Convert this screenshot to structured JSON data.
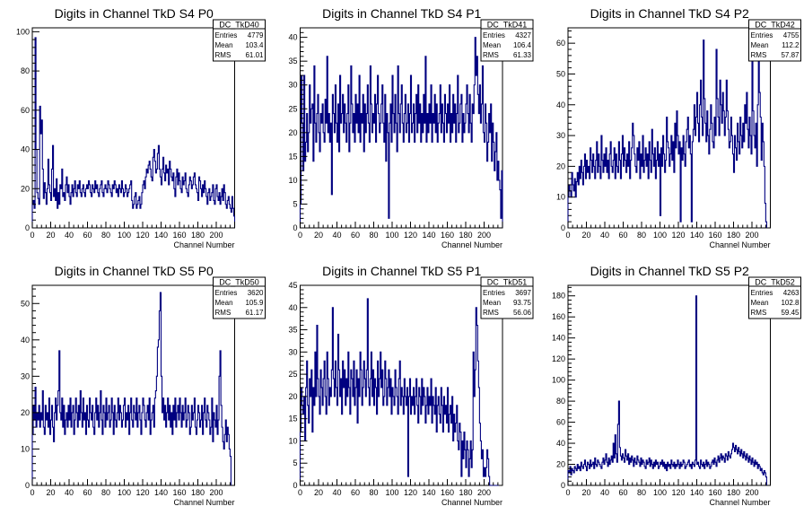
{
  "chart_data": [
    {
      "type": "histogram",
      "title": "Digits in Channel TkD S4 P0",
      "xlabel": "Channel Number",
      "xlim": [
        0,
        220
      ],
      "ylim": [
        0,
        102
      ],
      "xticks": [
        0,
        20,
        40,
        60,
        80,
        100,
        120,
        140,
        160,
        180,
        200
      ],
      "yticks": [
        0,
        20,
        40,
        60,
        80,
        100
      ],
      "stats": {
        "name": "DC_TkD40",
        "entries": "4779",
        "mean": "103.4",
        "rms": "61.01"
      },
      "values": [
        12,
        14,
        10,
        97,
        40,
        18,
        15,
        12,
        62,
        48,
        55,
        30,
        15,
        23,
        18,
        12,
        20,
        35,
        22,
        18,
        14,
        30,
        42,
        16,
        20,
        14,
        25,
        10,
        18,
        12,
        22,
        20,
        30,
        16,
        18,
        14,
        22,
        26,
        18,
        22,
        16,
        12,
        18,
        22,
        16,
        20,
        24,
        18,
        16,
        22,
        20,
        24,
        18,
        16,
        20,
        22,
        18,
        16,
        20,
        22,
        20,
        24,
        22,
        18,
        16,
        22,
        20,
        18,
        24,
        20,
        22,
        18,
        16,
        20,
        22,
        24,
        18,
        16,
        20,
        22,
        20,
        18,
        24,
        22,
        20,
        18,
        16,
        22,
        20,
        24,
        22,
        18,
        20,
        16,
        22,
        20,
        18,
        24,
        20,
        16,
        18,
        22,
        20,
        16,
        18,
        20,
        22,
        24,
        14,
        10,
        12,
        16,
        18,
        10,
        12,
        14,
        16,
        10,
        12,
        18,
        22,
        24,
        20,
        26,
        30,
        28,
        32,
        34,
        30,
        26,
        24,
        36,
        40,
        34,
        28,
        30,
        38,
        42,
        30,
        26,
        22,
        30,
        36,
        28,
        24,
        32,
        28,
        30,
        22,
        34,
        30,
        26,
        24,
        28,
        20,
        16,
        26,
        30,
        22,
        28,
        24,
        20,
        18,
        26,
        22,
        24,
        28,
        20,
        18,
        16,
        22,
        26,
        24,
        20,
        22,
        26,
        28,
        22,
        20,
        18,
        14,
        26,
        24,
        20,
        16,
        22,
        18,
        24,
        20,
        16,
        12,
        18,
        20,
        14,
        16,
        18,
        22,
        14,
        12,
        20,
        22,
        16,
        14,
        18,
        12,
        16,
        20,
        14,
        22,
        18,
        12,
        10,
        14,
        16,
        12,
        10,
        8,
        16,
        10,
        6
      ]
    },
    {
      "type": "histogram",
      "title": "Digits in Channel TkD S4 P1",
      "xlabel": "Channel Number",
      "xlim": [
        0,
        220
      ],
      "ylim": [
        0,
        42
      ],
      "xticks": [
        0,
        20,
        40,
        60,
        80,
        100,
        120,
        140,
        160,
        180,
        200
      ],
      "yticks": [
        0,
        5,
        10,
        15,
        20,
        25,
        30,
        35,
        40
      ],
      "stats": {
        "name": "DC_TkD41",
        "entries": "4327",
        "mean": "106.4",
        "rms": "61.33"
      },
      "values": [
        5,
        32,
        22,
        12,
        32,
        14,
        18,
        24,
        16,
        20,
        30,
        22,
        25,
        26,
        14,
        34,
        22,
        18,
        24,
        28,
        20,
        16,
        24,
        22,
        26,
        20,
        18,
        27,
        22,
        36,
        20,
        24,
        18,
        22,
        7,
        28,
        24,
        20,
        30,
        22,
        18,
        26,
        16,
        32,
        22,
        24,
        28,
        20,
        26,
        22,
        18,
        24,
        30,
        16,
        22,
        34,
        26,
        20,
        24,
        18,
        28,
        22,
        26,
        20,
        32,
        18,
        24,
        22,
        28,
        16,
        26,
        20,
        24,
        30,
        22,
        18,
        34,
        26,
        20,
        24,
        22,
        28,
        18,
        26,
        32,
        24,
        20,
        22,
        26,
        30,
        22,
        18,
        28,
        14,
        24,
        20,
        2,
        22,
        26,
        18,
        32,
        24,
        20,
        28,
        22,
        16,
        34,
        24,
        20,
        26,
        30,
        22,
        18,
        24,
        28,
        20,
        22,
        26,
        18,
        24,
        32,
        20,
        22,
        26,
        18,
        24,
        28,
        20,
        30,
        22,
        26,
        18,
        24,
        20,
        28,
        22,
        36,
        18,
        24,
        20,
        26,
        22,
        30,
        18,
        24,
        22,
        28,
        20,
        26,
        18,
        22,
        24,
        30,
        20,
        26,
        22,
        18,
        28,
        24,
        20,
        26,
        22,
        30,
        18,
        24,
        20,
        28,
        22,
        26,
        18,
        24,
        32,
        20,
        22,
        26,
        28,
        18,
        24,
        20,
        22,
        26,
        30,
        24,
        20,
        28,
        22,
        18,
        26,
        24,
        30,
        40,
        32,
        36,
        28,
        24,
        30,
        22,
        26,
        34,
        20,
        18,
        26,
        22,
        14,
        18,
        24,
        20,
        26,
        14,
        22,
        18,
        12,
        16,
        20,
        10,
        14,
        10,
        8,
        2,
        12
      ]
    },
    {
      "type": "histogram",
      "title": "Digits in Channel TkD S4 P2",
      "xlabel": "Channel Number",
      "xlim": [
        0,
        220
      ],
      "ylim": [
        0,
        65
      ],
      "xticks": [
        0,
        20,
        40,
        60,
        80,
        100,
        120,
        140,
        160,
        180,
        200
      ],
      "yticks": [
        0,
        10,
        20,
        30,
        40,
        50,
        60
      ],
      "stats": {
        "name": "DC_TkD42",
        "entries": "4755",
        "mean": "112.2",
        "rms": "57.87"
      },
      "values": [
        10,
        14,
        12,
        10,
        18,
        14,
        12,
        16,
        10,
        15,
        18,
        14,
        20,
        16,
        22,
        18,
        14,
        20,
        24,
        16,
        22,
        18,
        20,
        16,
        26,
        22,
        18,
        24,
        20,
        16,
        22,
        28,
        18,
        24,
        20,
        16,
        30,
        22,
        18,
        24,
        20,
        26,
        18,
        22,
        16,
        24,
        28,
        20,
        18,
        22,
        26,
        16,
        24,
        20,
        18,
        28,
        22,
        16,
        24,
        30,
        20,
        26,
        22,
        18,
        24,
        20,
        28,
        16,
        22,
        26,
        34,
        30,
        24,
        20,
        18,
        26,
        22,
        28,
        16,
        24,
        20,
        30,
        18,
        22,
        26,
        20,
        24,
        16,
        28,
        22,
        18,
        32,
        24,
        20,
        26,
        16,
        22,
        28,
        20,
        24,
        4,
        26,
        20,
        30,
        24,
        18,
        22,
        36,
        28,
        26,
        20,
        24,
        30,
        22,
        28,
        18,
        34,
        26,
        38,
        30,
        24,
        28,
        2,
        26,
        22,
        30,
        24,
        20,
        28,
        32,
        36,
        26,
        30,
        24,
        2,
        28,
        32,
        40,
        30,
        36,
        44,
        34,
        28,
        40,
        48,
        36,
        30,
        61,
        42,
        34,
        28,
        38,
        30,
        24,
        32,
        40,
        34,
        28,
        26,
        36,
        30,
        58,
        42,
        36,
        30,
        48,
        40,
        34,
        44,
        38,
        30,
        36,
        48,
        38,
        32,
        26,
        28,
        36,
        30,
        24,
        18,
        30,
        26,
        22,
        34,
        28,
        24,
        36,
        30,
        26,
        34,
        28,
        40,
        34,
        44,
        32,
        26,
        36,
        30,
        24,
        54,
        38,
        30,
        26,
        34,
        20,
        40,
        60,
        44,
        36,
        22,
        34,
        28,
        20,
        8,
        2
      ]
    },
    {
      "type": "histogram",
      "title": "Digits in Channel TkD S5 P0",
      "xlabel": "Channel Number",
      "xlim": [
        0,
        220
      ],
      "ylim": [
        0,
        55
      ],
      "xticks": [
        0,
        20,
        40,
        60,
        80,
        100,
        120,
        140,
        160,
        180,
        200
      ],
      "yticks": [
        0,
        10,
        20,
        30,
        40,
        50
      ],
      "stats": {
        "name": "DC_TkD50",
        "entries": "3620",
        "mean": "105.9",
        "rms": "61.17"
      },
      "values": [
        14,
        22,
        18,
        27,
        16,
        20,
        18,
        22,
        16,
        20,
        18,
        26,
        16,
        14,
        22,
        18,
        20,
        16,
        24,
        14,
        18,
        22,
        16,
        12,
        20,
        24,
        18,
        22,
        26,
        37,
        20,
        18,
        24,
        16,
        22,
        14,
        18,
        20,
        16,
        22,
        18,
        24,
        16,
        20,
        22,
        14,
        18,
        24,
        20,
        16,
        22,
        18,
        26,
        20,
        16,
        24,
        18,
        20,
        14,
        22,
        18,
        16,
        24,
        20,
        18,
        22,
        16,
        14,
        20,
        24,
        18,
        22,
        16,
        20,
        26,
        18,
        14,
        22,
        20,
        16,
        24,
        18,
        20,
        22,
        16,
        18,
        24,
        20,
        14,
        22,
        18,
        16,
        20,
        24,
        18,
        22,
        20,
        16,
        18,
        22,
        24,
        16,
        20,
        18,
        22,
        14,
        20,
        24,
        18,
        16,
        22,
        20,
        18,
        24,
        16,
        20,
        22,
        18,
        14,
        20,
        24,
        22,
        18,
        16,
        20,
        22,
        18,
        24,
        14,
        18,
        20,
        22,
        16,
        24,
        26,
        30,
        38,
        40,
        48,
        53,
        30,
        20,
        24,
        18,
        22,
        16,
        20,
        24,
        18,
        22,
        16,
        20,
        14,
        22,
        18,
        24,
        16,
        20,
        22,
        18,
        24,
        20,
        16,
        22,
        18,
        20,
        24,
        16,
        18,
        22,
        20,
        14,
        16,
        22,
        18,
        20,
        24,
        16,
        14,
        18,
        22,
        20,
        16,
        18,
        22,
        14,
        20,
        24,
        18,
        16,
        22,
        20,
        18,
        14,
        16,
        24,
        12,
        20,
        18,
        16,
        22,
        14,
        18,
        30,
        37,
        22,
        16,
        12,
        10,
        14,
        18,
        12,
        16,
        14,
        10,
        8
      ]
    },
    {
      "type": "histogram",
      "title": "Digits in Channel TkD S5 P1",
      "xlabel": "Channel Number",
      "xlim": [
        0,
        220
      ],
      "ylim": [
        0,
        45
      ],
      "xticks": [
        0,
        20,
        40,
        60,
        80,
        100,
        120,
        140,
        160,
        180,
        200
      ],
      "yticks": [
        0,
        5,
        10,
        15,
        20,
        25,
        30,
        35,
        40,
        45
      ],
      "stats": {
        "name": "DC_TkD51",
        "entries": "3697",
        "mean": "93.75",
        "rms": "56.06"
      },
      "values": [
        12,
        22,
        18,
        16,
        20,
        10,
        22,
        28,
        18,
        14,
        24,
        20,
        26,
        12,
        22,
        18,
        30,
        20,
        36,
        24,
        20,
        16,
        26,
        22,
        18,
        24,
        28,
        20,
        16,
        30,
        24,
        18,
        22,
        20,
        26,
        40,
        24,
        20,
        28,
        22,
        18,
        34,
        26,
        20,
        24,
        16,
        28,
        22,
        26,
        18,
        24,
        20,
        30,
        22,
        16,
        26,
        24,
        20,
        28,
        18,
        22,
        26,
        14,
        24,
        20,
        30,
        26,
        18,
        22,
        28,
        24,
        20,
        26,
        42,
        22,
        18,
        24,
        30,
        20,
        26,
        18,
        24,
        22,
        16,
        28,
        20,
        24,
        30,
        22,
        26,
        18,
        20,
        28,
        24,
        18,
        22,
        26,
        20,
        24,
        16,
        22,
        20,
        18,
        26,
        22,
        20,
        16,
        24,
        28,
        18,
        22,
        20,
        16,
        24,
        20,
        18,
        22,
        2,
        20,
        24,
        16,
        20,
        18,
        22,
        16,
        20,
        24,
        18,
        14,
        22,
        20,
        16,
        24,
        18,
        22,
        20,
        14,
        18,
        22,
        16,
        20,
        18,
        24,
        14,
        20,
        18,
        16,
        22,
        12,
        18,
        20,
        16,
        14,
        22,
        18,
        12,
        20,
        16,
        18,
        14,
        22,
        12,
        16,
        18,
        14,
        20,
        10,
        16,
        12,
        14,
        18,
        10,
        8,
        14,
        12,
        2,
        10,
        6,
        12,
        8,
        4,
        10,
        8,
        2,
        6,
        10,
        4,
        8,
        30,
        20,
        26,
        40,
        36,
        28,
        22,
        14,
        10,
        6,
        8,
        2,
        4,
        2,
        4,
        8,
        6,
        2,
        0,
        0,
        0,
        0,
        0,
        0,
        0,
        0,
        0,
        0
      ]
    },
    {
      "type": "histogram",
      "title": "Digits in Channel TkD S5 P2",
      "xlabel": "Channel Number",
      "xlim": [
        0,
        220
      ],
      "ylim": [
        0,
        190
      ],
      "xticks": [
        0,
        20,
        40,
        60,
        80,
        100,
        120,
        140,
        160,
        180,
        200
      ],
      "yticks": [
        0,
        20,
        40,
        60,
        80,
        100,
        120,
        140,
        160,
        180
      ],
      "stats": {
        "name": "DC_TkD52",
        "entries": "4263",
        "mean": "102.8",
        "rms": "59.45"
      },
      "values": [
        14,
        12,
        18,
        10,
        16,
        14,
        12,
        18,
        16,
        14,
        20,
        16,
        18,
        14,
        22,
        18,
        16,
        20,
        24,
        18,
        14,
        22,
        20,
        16,
        24,
        18,
        20,
        22,
        16,
        26,
        20,
        18,
        24,
        22,
        20,
        18,
        16,
        22,
        26,
        20,
        24,
        30,
        22,
        18,
        26,
        20,
        24,
        28,
        22,
        40,
        26,
        48,
        30,
        22,
        58,
        80,
        36,
        28,
        24,
        30,
        26,
        22,
        34,
        28,
        24,
        30,
        20,
        26,
        22,
        28,
        24,
        18,
        26,
        22,
        20,
        28,
        24,
        22,
        18,
        26,
        20,
        24,
        22,
        18,
        16,
        24,
        20,
        22,
        26,
        18,
        24,
        20,
        16,
        22,
        18,
        24,
        20,
        22,
        16,
        18,
        22,
        20,
        24,
        18,
        22,
        16,
        20,
        14,
        22,
        18,
        20,
        16,
        24,
        20,
        18,
        22,
        16,
        20,
        18,
        24,
        20,
        16,
        22,
        18,
        20,
        24,
        22,
        16,
        18,
        20,
        22,
        24,
        18,
        20,
        16,
        22,
        20,
        18,
        24,
        180,
        20,
        22,
        18,
        16,
        24,
        20,
        18,
        22,
        16,
        20,
        24,
        18,
        22,
        20,
        16,
        18,
        22,
        24,
        20,
        26,
        22,
        18,
        24,
        28,
        22,
        26,
        30,
        24,
        28,
        26,
        22,
        30,
        28,
        24,
        32,
        28,
        26,
        30,
        34,
        40,
        36,
        32,
        38,
        34,
        30,
        36,
        32,
        28,
        34,
        30,
        26,
        32,
        28,
        24,
        30,
        26,
        22,
        28,
        24,
        20,
        26,
        22,
        18,
        24,
        20,
        22,
        16,
        20,
        18,
        14,
        16,
        12,
        10,
        14,
        12,
        8
      ]
    }
  ]
}
